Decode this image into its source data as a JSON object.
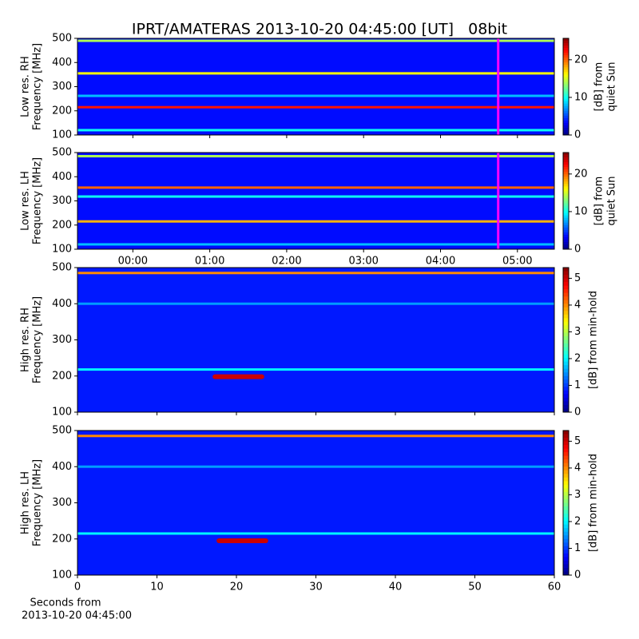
{
  "title": "IPRT/AMATERAS 2013-10-20 04:45:00 [UT]   08bit",
  "chart_data": [
    {
      "type": "heatmap",
      "colormap": "jet",
      "ylabel": [
        "Low res. RH",
        "Frequency [MHz]"
      ],
      "xlim": [
        -0.72,
        5.48
      ],
      "ylim": [
        100,
        500
      ],
      "yticks": [
        100,
        200,
        300,
        400,
        500
      ],
      "base": 3.5,
      "features": [
        {
          "y": 490,
          "value": 14
        },
        {
          "y": 355,
          "value": 16
        },
        {
          "y": 262,
          "value": 8
        },
        {
          "y": 215,
          "value": 22
        },
        {
          "y": 120,
          "value": 10
        }
      ],
      "vline": {
        "x": 4.75,
        "color": "#ff00ff"
      },
      "colorbar": {
        "label": [
          "[dB] from",
          "quiet Sun"
        ],
        "lim": [
          0,
          25.7
        ],
        "ticks": [
          0,
          10,
          20
        ]
      }
    },
    {
      "type": "heatmap",
      "colormap": "jet",
      "ylabel": [
        "Low res. LH",
        "Frequency [MHz]"
      ],
      "xlim": [
        -0.72,
        5.48
      ],
      "ylim": [
        100,
        500
      ],
      "yticks": [
        100,
        200,
        300,
        400,
        500
      ],
      "base": 3.5,
      "xticks": [
        {
          "value": 0,
          "label": "00:00"
        },
        {
          "value": 1,
          "label": "01:00"
        },
        {
          "value": 2,
          "label": "02:00"
        },
        {
          "value": 3,
          "label": "03:00"
        },
        {
          "value": 4,
          "label": "04:00"
        },
        {
          "value": 5,
          "label": "05:00"
        }
      ],
      "features": [
        {
          "y": 485,
          "value": 14
        },
        {
          "y": 355,
          "value": 20
        },
        {
          "y": 318,
          "value": 10
        },
        {
          "y": 215,
          "value": 18
        },
        {
          "y": 120,
          "value": 8
        }
      ],
      "vline": {
        "x": 4.75,
        "color": "#ff00ff"
      },
      "colorbar": {
        "label": [
          "[dB] from",
          "quiet Sun"
        ],
        "lim": [
          0,
          25.7
        ],
        "ticks": [
          0,
          10,
          20
        ]
      }
    },
    {
      "type": "heatmap",
      "colormap": "jet",
      "ylabel": [
        "High res. RH",
        "Frequency [MHz]"
      ],
      "xlim": [
        0,
        60
      ],
      "ylim": [
        100,
        500
      ],
      "yticks": [
        100,
        200,
        300,
        400,
        500
      ],
      "base": 0.8,
      "features": [
        {
          "y": 485,
          "value": 4
        },
        {
          "y": 400,
          "value": 1.5
        },
        {
          "y": 218,
          "value": 2
        },
        {
          "x": [
            17,
            23.5
          ],
          "y": 198,
          "value": 5
        }
      ],
      "colorbar": {
        "label": [
          "[dB] from min-hold"
        ],
        "lim": [
          0,
          5.4
        ],
        "ticks": [
          0,
          1,
          2,
          3,
          4,
          5
        ]
      }
    },
    {
      "type": "heatmap",
      "colormap": "jet",
      "ylabel": [
        "High res. LH",
        "Frequency [MHz]"
      ],
      "xlim": [
        0,
        60
      ],
      "ylim": [
        100,
        500
      ],
      "yticks": [
        100,
        200,
        300,
        400,
        500
      ],
      "base": 0.8,
      "xticks": [
        0,
        10,
        20,
        30,
        40,
        50,
        60
      ],
      "xlabel": [
        "Seconds from",
        "2013-10-20 04:45:00"
      ],
      "features": [
        {
          "y": 485,
          "value": 4
        },
        {
          "y": 400,
          "value": 1.5
        },
        {
          "y": 215,
          "value": 2
        },
        {
          "x": [
            17.5,
            24
          ],
          "y": 195,
          "value": 5
        }
      ],
      "colorbar": {
        "label": [
          "[dB] from min-hold"
        ],
        "lim": [
          0,
          5.4
        ],
        "ticks": [
          0,
          1,
          2,
          3,
          4,
          5
        ]
      }
    }
  ]
}
